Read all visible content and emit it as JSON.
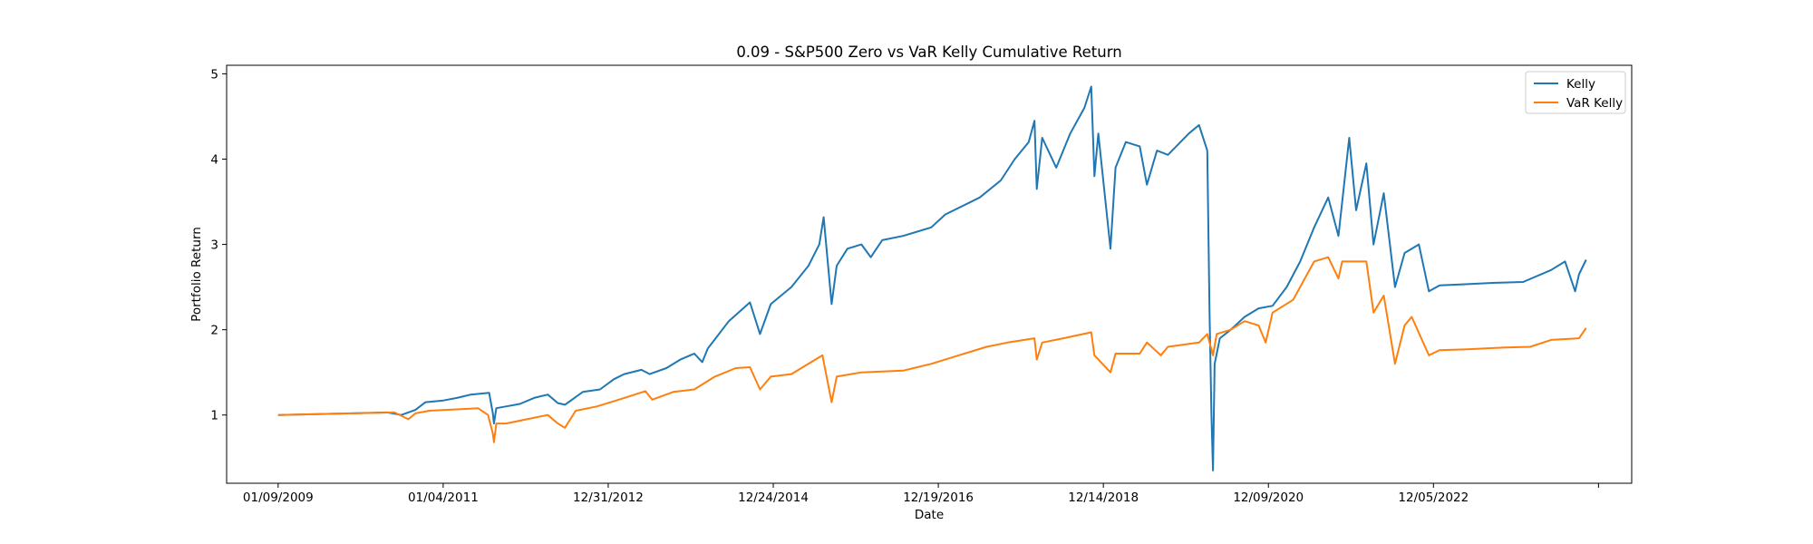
{
  "chart_data": {
    "type": "line",
    "title": "0.09 - S&P500 Zero vs VaR Kelly Cumulative Return",
    "xlabel": "Date",
    "ylabel": "Portfolio Return",
    "x_tick_labels": [
      "01/09/2009",
      "01/04/2011",
      "12/31/2012",
      "12/24/2014",
      "12/19/2016",
      "12/14/2018",
      "12/09/2020",
      "12/05/2022",
      ""
    ],
    "y_ticks": [
      1,
      2,
      3,
      4,
      5
    ],
    "ylim": [
      0.2,
      5.1
    ],
    "xlim": [
      "2008-05-29",
      "2025-03-19"
    ],
    "grid": false,
    "legend_position": "top-right",
    "series": [
      {
        "name": "Kelly",
        "color": "#1f77b4",
        "points": [
          [
            "2009-01-09",
            1.0
          ],
          [
            "2010-05-01",
            1.03
          ],
          [
            "2010-07-01",
            1.0
          ],
          [
            "2010-09-01",
            1.06
          ],
          [
            "2010-10-15",
            1.15
          ],
          [
            "2011-01-01",
            1.17
          ],
          [
            "2011-03-01",
            1.2
          ],
          [
            "2011-05-01",
            1.24
          ],
          [
            "2011-07-20",
            1.26
          ],
          [
            "2011-08-05",
            1.02
          ],
          [
            "2011-08-10",
            0.9
          ],
          [
            "2011-08-20",
            1.08
          ],
          [
            "2011-10-01",
            1.1
          ],
          [
            "2011-12-01",
            1.13
          ],
          [
            "2012-02-01",
            1.2
          ],
          [
            "2012-04-01",
            1.24
          ],
          [
            "2012-05-15",
            1.14
          ],
          [
            "2012-06-15",
            1.12
          ],
          [
            "2012-09-01",
            1.27
          ],
          [
            "2012-11-15",
            1.3
          ],
          [
            "2013-01-15",
            1.42
          ],
          [
            "2013-03-01",
            1.48
          ],
          [
            "2013-05-15",
            1.53
          ],
          [
            "2013-06-20",
            1.48
          ],
          [
            "2013-09-01",
            1.55
          ],
          [
            "2013-11-01",
            1.65
          ],
          [
            "2014-01-01",
            1.72
          ],
          [
            "2014-02-05",
            1.62
          ],
          [
            "2014-03-01",
            1.78
          ],
          [
            "2014-06-01",
            2.1
          ],
          [
            "2014-09-01",
            2.32
          ],
          [
            "2014-10-15",
            1.95
          ],
          [
            "2014-12-01",
            2.3
          ],
          [
            "2015-03-01",
            2.5
          ],
          [
            "2015-05-15",
            2.75
          ],
          [
            "2015-07-01",
            3.0
          ],
          [
            "2015-07-20",
            3.32
          ],
          [
            "2015-08-24",
            2.3
          ],
          [
            "2015-09-15",
            2.75
          ],
          [
            "2015-11-01",
            2.95
          ],
          [
            "2016-01-01",
            3.0
          ],
          [
            "2016-02-11",
            2.85
          ],
          [
            "2016-04-01",
            3.05
          ],
          [
            "2016-07-01",
            3.1
          ],
          [
            "2016-11-01",
            3.2
          ],
          [
            "2017-01-01",
            3.35
          ],
          [
            "2017-06-01",
            3.55
          ],
          [
            "2017-09-01",
            3.75
          ],
          [
            "2017-11-01",
            4.0
          ],
          [
            "2018-01-01",
            4.2
          ],
          [
            "2018-01-26",
            4.45
          ],
          [
            "2018-02-05",
            3.65
          ],
          [
            "2018-03-01",
            4.25
          ],
          [
            "2018-05-01",
            3.9
          ],
          [
            "2018-07-01",
            4.3
          ],
          [
            "2018-09-01",
            4.6
          ],
          [
            "2018-10-01",
            4.85
          ],
          [
            "2018-10-15",
            3.8
          ],
          [
            "2018-11-01",
            4.3
          ],
          [
            "2018-12-24",
            2.95
          ],
          [
            "2019-01-15",
            3.9
          ],
          [
            "2019-03-01",
            4.2
          ],
          [
            "2019-05-01",
            4.15
          ],
          [
            "2019-06-01",
            3.7
          ],
          [
            "2019-07-15",
            4.1
          ],
          [
            "2019-09-01",
            4.05
          ],
          [
            "2019-12-01",
            4.3
          ],
          [
            "2020-01-15",
            4.4
          ],
          [
            "2020-02-20",
            4.1
          ],
          [
            "2020-03-01",
            2.2
          ],
          [
            "2020-03-09",
            1.0
          ],
          [
            "2020-03-16",
            0.35
          ],
          [
            "2020-03-23",
            1.6
          ],
          [
            "2020-04-15",
            1.9
          ],
          [
            "2020-06-01",
            2.0
          ],
          [
            "2020-08-01",
            2.15
          ],
          [
            "2020-10-01",
            2.25
          ],
          [
            "2020-12-01",
            2.28
          ],
          [
            "2021-02-01",
            2.5
          ],
          [
            "2021-04-01",
            2.8
          ],
          [
            "2021-06-01",
            3.2
          ],
          [
            "2021-08-01",
            3.55
          ],
          [
            "2021-09-15",
            3.1
          ],
          [
            "2021-11-01",
            4.25
          ],
          [
            "2021-12-01",
            3.4
          ],
          [
            "2022-01-15",
            3.95
          ],
          [
            "2022-02-15",
            3.0
          ],
          [
            "2022-04-01",
            3.6
          ],
          [
            "2022-05-20",
            2.5
          ],
          [
            "2022-07-01",
            2.9
          ],
          [
            "2022-09-01",
            3.0
          ],
          [
            "2022-10-15",
            2.45
          ],
          [
            "2022-12-01",
            2.52
          ],
          [
            "2023-03-01",
            2.53
          ],
          [
            "2023-08-01",
            2.55
          ],
          [
            "2023-12-01",
            2.56
          ],
          [
            "2024-04-01",
            2.7
          ],
          [
            "2024-06-01",
            2.8
          ],
          [
            "2024-07-15",
            2.45
          ],
          [
            "2024-08-01",
            2.65
          ],
          [
            "2024-09-01",
            2.82
          ]
        ]
      },
      {
        "name": "VaR Kelly",
        "color": "#ff7f0e",
        "points": [
          [
            "2009-01-09",
            1.0
          ],
          [
            "2010-06-01",
            1.03
          ],
          [
            "2010-08-01",
            0.95
          ],
          [
            "2010-09-01",
            1.02
          ],
          [
            "2010-11-01",
            1.05
          ],
          [
            "2011-04-01",
            1.07
          ],
          [
            "2011-06-01",
            1.08
          ],
          [
            "2011-07-15",
            1.0
          ],
          [
            "2011-08-05",
            0.78
          ],
          [
            "2011-08-10",
            0.68
          ],
          [
            "2011-08-20",
            0.9
          ],
          [
            "2011-10-01",
            0.9
          ],
          [
            "2012-01-01",
            0.95
          ],
          [
            "2012-04-01",
            1.0
          ],
          [
            "2012-05-15",
            0.9
          ],
          [
            "2012-06-15",
            0.85
          ],
          [
            "2012-08-01",
            1.05
          ],
          [
            "2012-11-01",
            1.1
          ],
          [
            "2013-01-01",
            1.15
          ],
          [
            "2013-03-01",
            1.2
          ],
          [
            "2013-06-01",
            1.28
          ],
          [
            "2013-07-01",
            1.18
          ],
          [
            "2013-10-01",
            1.27
          ],
          [
            "2014-01-01",
            1.3
          ],
          [
            "2014-04-01",
            1.45
          ],
          [
            "2014-07-01",
            1.55
          ],
          [
            "2014-09-01",
            1.56
          ],
          [
            "2014-10-15",
            1.3
          ],
          [
            "2014-12-01",
            1.45
          ],
          [
            "2015-03-01",
            1.48
          ],
          [
            "2015-07-15",
            1.7
          ],
          [
            "2015-08-24",
            1.15
          ],
          [
            "2015-09-15",
            1.45
          ],
          [
            "2016-01-01",
            1.5
          ],
          [
            "2016-07-01",
            1.52
          ],
          [
            "2016-11-01",
            1.6
          ],
          [
            "2017-03-01",
            1.7
          ],
          [
            "2017-07-01",
            1.8
          ],
          [
            "2017-10-01",
            1.85
          ],
          [
            "2018-01-26",
            1.9
          ],
          [
            "2018-02-05",
            1.65
          ],
          [
            "2018-03-01",
            1.85
          ],
          [
            "2018-06-01",
            1.9
          ],
          [
            "2018-10-01",
            1.97
          ],
          [
            "2018-10-15",
            1.7
          ],
          [
            "2018-12-24",
            1.5
          ],
          [
            "2019-01-15",
            1.72
          ],
          [
            "2019-05-01",
            1.72
          ],
          [
            "2019-06-01",
            1.85
          ],
          [
            "2019-08-01",
            1.7
          ],
          [
            "2019-09-01",
            1.8
          ],
          [
            "2020-01-15",
            1.85
          ],
          [
            "2020-02-20",
            1.95
          ],
          [
            "2020-03-16",
            1.7
          ],
          [
            "2020-04-01",
            1.95
          ],
          [
            "2020-06-01",
            2.0
          ],
          [
            "2020-08-01",
            2.1
          ],
          [
            "2020-10-01",
            2.05
          ],
          [
            "2020-11-01",
            1.85
          ],
          [
            "2020-12-01",
            2.2
          ],
          [
            "2021-03-01",
            2.35
          ],
          [
            "2021-06-01",
            2.8
          ],
          [
            "2021-08-01",
            2.85
          ],
          [
            "2021-09-15",
            2.6
          ],
          [
            "2021-10-01",
            2.8
          ],
          [
            "2022-01-15",
            2.8
          ],
          [
            "2022-02-15",
            2.2
          ],
          [
            "2022-04-01",
            2.4
          ],
          [
            "2022-05-20",
            1.6
          ],
          [
            "2022-07-01",
            2.05
          ],
          [
            "2022-08-01",
            2.15
          ],
          [
            "2022-10-15",
            1.7
          ],
          [
            "2022-12-01",
            1.76
          ],
          [
            "2023-04-01",
            1.77
          ],
          [
            "2023-09-01",
            1.79
          ],
          [
            "2024-01-01",
            1.8
          ],
          [
            "2024-04-01",
            1.88
          ],
          [
            "2024-08-01",
            1.9
          ],
          [
            "2024-09-01",
            2.02
          ]
        ]
      }
    ]
  }
}
